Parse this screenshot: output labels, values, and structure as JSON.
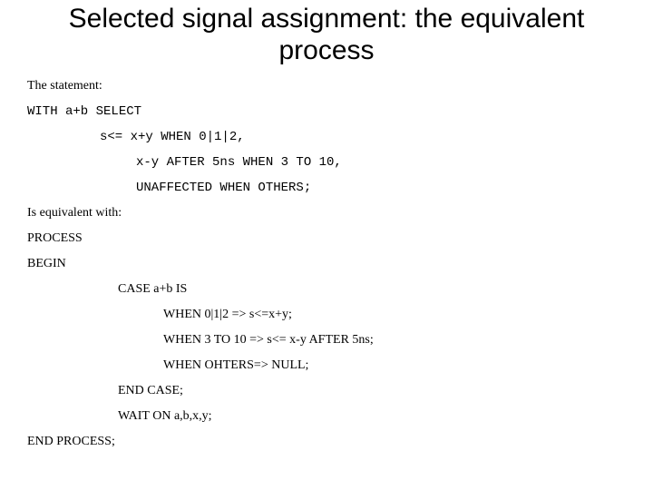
{
  "title": "Selected signal assignment: the equivalent process",
  "lines": {
    "l1": "The statement:",
    "l2": "WITH a+b SELECT",
    "l3": "s<= x+y WHEN 0|1|2,",
    "l4": "x-y AFTER 5ns WHEN 3 TO 10,",
    "l5": "UNAFFECTED WHEN OTHERS;",
    "l6": "Is equivalent with:",
    "l7": "PROCESS",
    "l8": "BEGIN",
    "l9": "CASE a+b IS",
    "l10": "WHEN 0|1|2 => s<=x+y;",
    "l11": "WHEN 3 TO 10 => s<= x-y AFTER 5ns;",
    "l12": "WHEN OHTERS=> NULL;",
    "l13": "END CASE;",
    "l14": "WAIT ON a,b,x,y;",
    "l15": "END PROCESS;"
  },
  "style": {
    "title_fontsize": 30,
    "body_fontsize": 14,
    "background": "#ffffff",
    "text_color": "#000000",
    "code_font": "Courier New",
    "body_font": "Times New Roman",
    "title_font": "Arial"
  }
}
